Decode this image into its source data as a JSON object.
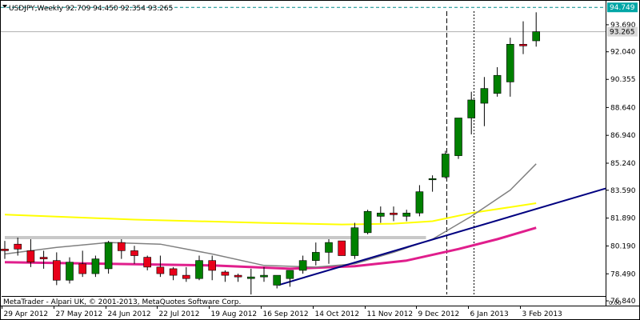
{
  "header": {
    "symbol_line": "USDJPY,Weekly  92.709 94.450 92.354 93.265"
  },
  "footer": {
    "copyright": "MetaTrader - Alpari UK, © 2001-2013, MetaQuotes Software Corp."
  },
  "price_tags": {
    "high": "94.749",
    "last": "93.265"
  },
  "colors": {
    "bull_body": "#008000",
    "bear_body": "#e8001a",
    "wick": "#000000",
    "ma_yellow": "#ffff00",
    "ma_magenta": "#e01e8c",
    "ma_gray": "#808080",
    "trendline": "#000080",
    "support_gray": "#c8c8c8",
    "tag_high_bg": "#00a6a6",
    "tag_last_bg": "#d9d9d9"
  },
  "chart_data": {
    "type": "candlestick",
    "symbol": "USDJPY",
    "timeframe": "Weekly",
    "y_ticks": [
      "93.690",
      "92.040",
      "90.355",
      "88.640",
      "86.940",
      "85.240",
      "83.590",
      "81.890",
      "80.190",
      "78.490",
      "76.840"
    ],
    "x_labels": [
      "29 Apr 2012",
      "27 May 2012",
      "24 Jun 2012",
      "22 Jul 2012",
      "19 Aug 2012",
      "16 Sep 2012",
      "14 Oct 2012",
      "11 Nov 2012",
      "9 Dec 2012",
      "6 Jan 2013",
      "3 Feb 2013"
    ],
    "ylim": [
      76.55,
      95.2
    ],
    "grid": false,
    "candles": [
      {
        "o": 80.0,
        "h": 80.5,
        "l": 79.4,
        "c": 79.9
      },
      {
        "o": 80.3,
        "h": 80.7,
        "l": 79.6,
        "c": 80.0
      },
      {
        "o": 79.9,
        "h": 80.6,
        "l": 78.9,
        "c": 79.2
      },
      {
        "o": 79.5,
        "h": 79.9,
        "l": 78.8,
        "c": 79.4
      },
      {
        "o": 79.3,
        "h": 79.8,
        "l": 77.8,
        "c": 78.1
      },
      {
        "o": 78.1,
        "h": 79.5,
        "l": 77.9,
        "c": 79.2
      },
      {
        "o": 79.1,
        "h": 79.9,
        "l": 78.3,
        "c": 78.5
      },
      {
        "o": 78.5,
        "h": 79.6,
        "l": 78.3,
        "c": 79.4
      },
      {
        "o": 78.8,
        "h": 80.5,
        "l": 78.5,
        "c": 80.4
      },
      {
        "o": 80.4,
        "h": 80.6,
        "l": 79.4,
        "c": 79.9
      },
      {
        "o": 79.9,
        "h": 80.2,
        "l": 79.1,
        "c": 79.6
      },
      {
        "o": 79.5,
        "h": 79.6,
        "l": 78.7,
        "c": 78.9
      },
      {
        "o": 78.9,
        "h": 79.6,
        "l": 78.3,
        "c": 78.5
      },
      {
        "o": 78.8,
        "h": 78.9,
        "l": 78.1,
        "c": 78.4
      },
      {
        "o": 78.4,
        "h": 78.9,
        "l": 78.0,
        "c": 78.2
      },
      {
        "o": 78.2,
        "h": 79.6,
        "l": 78.1,
        "c": 79.3
      },
      {
        "o": 79.3,
        "h": 79.6,
        "l": 78.1,
        "c": 78.7
      },
      {
        "o": 78.6,
        "h": 78.7,
        "l": 78.0,
        "c": 78.4
      },
      {
        "o": 78.4,
        "h": 78.5,
        "l": 78.0,
        "c": 78.3
      },
      {
        "o": 78.2,
        "h": 78.8,
        "l": 77.2,
        "c": 78.3
      },
      {
        "o": 78.3,
        "h": 78.9,
        "l": 78.0,
        "c": 78.4
      },
      {
        "o": 77.8,
        "h": 78.4,
        "l": 77.6,
        "c": 78.4
      },
      {
        "o": 78.2,
        "h": 78.6,
        "l": 77.7,
        "c": 78.7
      },
      {
        "o": 78.7,
        "h": 79.6,
        "l": 78.5,
        "c": 79.3
      },
      {
        "o": 79.3,
        "h": 80.4,
        "l": 79.0,
        "c": 79.8
      },
      {
        "o": 79.8,
        "h": 80.6,
        "l": 79.1,
        "c": 80.4
      },
      {
        "o": 80.5,
        "h": 80.5,
        "l": 79.6,
        "c": 79.6
      },
      {
        "o": 79.6,
        "h": 81.6,
        "l": 79.4,
        "c": 81.3
      },
      {
        "o": 81.0,
        "h": 82.4,
        "l": 80.9,
        "c": 82.3
      },
      {
        "o": 82.0,
        "h": 82.6,
        "l": 81.6,
        "c": 82.2
      },
      {
        "o": 82.2,
        "h": 82.6,
        "l": 81.7,
        "c": 82.1
      },
      {
        "o": 82.0,
        "h": 82.4,
        "l": 81.7,
        "c": 82.2
      },
      {
        "o": 82.2,
        "h": 83.9,
        "l": 82.0,
        "c": 83.5
      },
      {
        "o": 84.3,
        "h": 84.5,
        "l": 83.5,
        "c": 84.3
      },
      {
        "o": 84.4,
        "h": 86.0,
        "l": 84.3,
        "c": 85.8
      },
      {
        "o": 85.7,
        "h": 88.0,
        "l": 85.5,
        "c": 88.0
      },
      {
        "o": 88.0,
        "h": 89.6,
        "l": 87.0,
        "c": 89.1
      },
      {
        "o": 88.9,
        "h": 90.5,
        "l": 87.5,
        "c": 89.8
      },
      {
        "o": 89.5,
        "h": 91.1,
        "l": 89.3,
        "c": 90.6
      },
      {
        "o": 90.2,
        "h": 92.9,
        "l": 89.3,
        "c": 92.5
      },
      {
        "o": 92.5,
        "h": 93.9,
        "l": 91.9,
        "c": 92.4
      },
      {
        "o": 92.709,
        "h": 94.45,
        "l": 92.354,
        "c": 93.265
      }
    ],
    "indicators": [
      {
        "name": "",
        "color": "#ffff00",
        "points": [
          [
            0,
            82.1
          ],
          [
            10,
            81.8
          ],
          [
            20,
            81.6
          ],
          [
            26,
            81.5
          ],
          [
            30,
            81.55
          ],
          [
            33,
            81.7
          ],
          [
            36,
            82.2
          ],
          [
            41,
            82.8
          ]
        ]
      },
      {
        "name": "",
        "color": "#e01e8c",
        "points": [
          [
            0,
            79.2
          ],
          [
            8,
            79.1
          ],
          [
            16,
            79.0
          ],
          [
            22,
            78.8
          ],
          [
            27,
            78.95
          ],
          [
            31,
            79.3
          ],
          [
            35,
            80.0
          ],
          [
            38,
            80.6
          ],
          [
            41,
            81.3
          ]
        ]
      },
      {
        "name": "",
        "color": "#808080",
        "points": [
          [
            0,
            79.7
          ],
          [
            4,
            80.1
          ],
          [
            8,
            80.4
          ],
          [
            12,
            80.3
          ],
          [
            16,
            79.7
          ],
          [
            20,
            79.0
          ],
          [
            24,
            78.9
          ],
          [
            27,
            79.1
          ],
          [
            30,
            79.8
          ],
          [
            33,
            80.6
          ],
          [
            36,
            82.0
          ],
          [
            39,
            83.6
          ],
          [
            41,
            85.2
          ]
        ]
      }
    ],
    "trendlines": [
      {
        "from": [
          21.1,
          77.8
        ],
        "to": [
          47.5,
          83.7
        ]
      }
    ],
    "support_line": {
      "from": [
        0,
        80.7
      ],
      "to": [
        32.5,
        80.7
      ],
      "value": 80.7
    },
    "price_lines": {
      "high": 94.749,
      "last": 93.265
    },
    "vertical_markers": [
      34.1,
      36.2
    ]
  }
}
